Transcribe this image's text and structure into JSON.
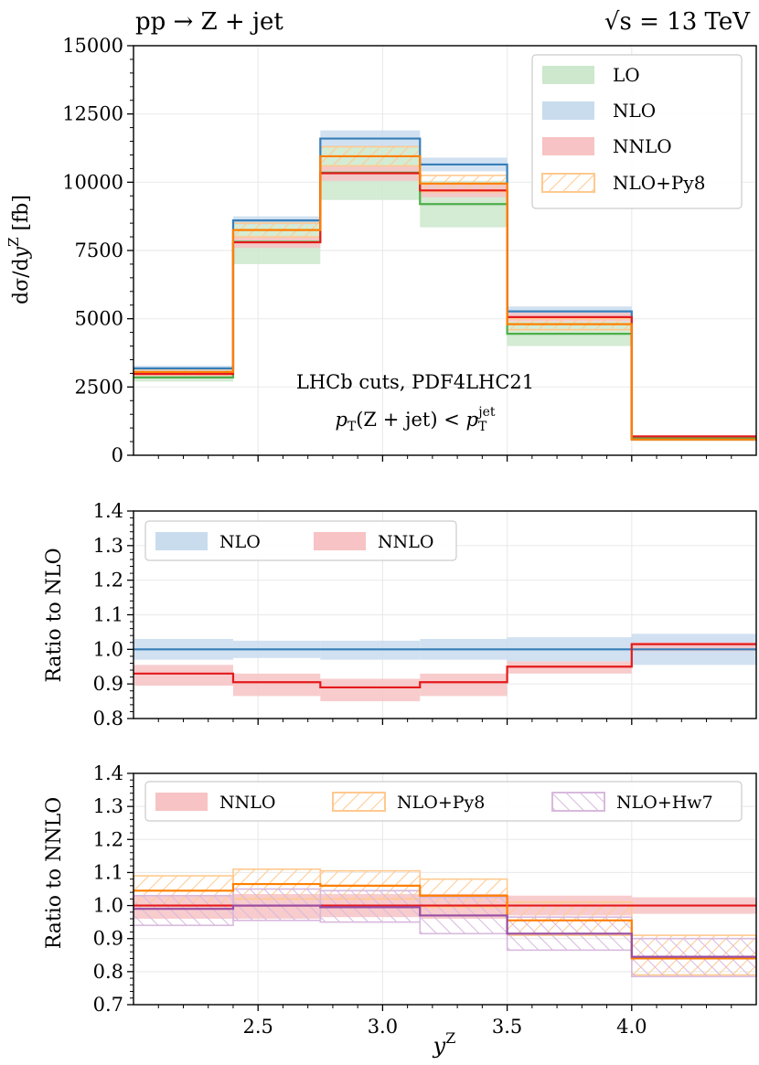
{
  "header": {
    "process": "pp → Z + jet",
    "energy_prefix": "√s",
    "energy_suffix": " = 13 TeV"
  },
  "colors": {
    "LO": "#4daf4a",
    "LO_band": "#cde8cc",
    "NLO": "#377eb8",
    "NLO_band": "#c9dcee",
    "NNLO": "#e41a1c",
    "NNLO_band": "#f7c3c4",
    "Py8": "#ff7f00",
    "Py8_hatch": "#ffc98f",
    "Hw7": "#984ea3",
    "Hw7_hatch": "#d8b9dd",
    "grid": "#ebebeb"
  },
  "chart_data": [
    {
      "id": "main",
      "type": "histogram",
      "ylabel": "dσ/dy^Z [fb]",
      "ylim": [
        0,
        15000
      ],
      "yticks": [
        0,
        2500,
        5000,
        7500,
        10000,
        12500,
        15000
      ],
      "yminor_step": 500,
      "xlim": [
        2.0,
        4.5
      ],
      "bin_edges": [
        2.0,
        2.4,
        2.75,
        3.15,
        3.5,
        4.0,
        4.5
      ],
      "annotation": [
        "LHCb cuts, PDF4LHC21",
        "pT(Z + jet) < pT^jet"
      ],
      "legend": {
        "location": "top-right",
        "entries": [
          "LO",
          "NLO",
          "NNLO",
          "NLO+Py8"
        ]
      },
      "series": [
        {
          "name": "LO",
          "kind": "band",
          "values": [
            2850,
            7820,
            10350,
            9200,
            4450,
            620
          ],
          "lower": [
            2700,
            7000,
            9350,
            8350,
            4000,
            560
          ],
          "upper": [
            3000,
            8650,
            11350,
            10050,
            4900,
            680
          ]
        },
        {
          "name": "NLO",
          "kind": "band",
          "values": [
            3180,
            8600,
            11600,
            10650,
            5270,
            580
          ],
          "lower": [
            3080,
            8450,
            11300,
            10400,
            5100,
            555
          ],
          "upper": [
            3280,
            8750,
            11900,
            10900,
            5450,
            605
          ]
        },
        {
          "name": "NNLO",
          "kind": "band",
          "values": [
            2980,
            7800,
            10330,
            9700,
            5060,
            690
          ],
          "lower": [
            2900,
            7600,
            10050,
            9450,
            4900,
            670
          ],
          "upper": [
            3060,
            8000,
            10600,
            9950,
            5220,
            710
          ]
        },
        {
          "name": "NLO+Py8",
          "kind": "hatch",
          "values": [
            3050,
            8250,
            10950,
            9950,
            4800,
            580
          ],
          "lower": [
            2950,
            8000,
            10600,
            9650,
            4600,
            550
          ],
          "upper": [
            3150,
            8500,
            11300,
            10250,
            5000,
            610
          ]
        }
      ]
    },
    {
      "id": "ratio_nlo",
      "type": "histogram",
      "ylabel": "Ratio to NLO",
      "ylim": [
        0.8,
        1.4
      ],
      "yticks": [
        0.8,
        0.9,
        1.0,
        1.1,
        1.2,
        1.3,
        1.4
      ],
      "ytick_labels": [
        "0.8",
        "0.9",
        "1.0",
        "1.1",
        "1.2",
        "1.3",
        "1.4"
      ],
      "yminor_step": 0.02,
      "xlim": [
        2.0,
        4.5
      ],
      "bin_edges": [
        2.0,
        2.4,
        2.75,
        3.15,
        3.5,
        4.0,
        4.5
      ],
      "legend": {
        "location": "top-left",
        "entries": [
          "NLO",
          "NNLO"
        ]
      },
      "series": [
        {
          "name": "NLO",
          "kind": "band",
          "values": [
            1.0,
            1.0,
            1.0,
            1.0,
            1.0,
            1.0
          ],
          "lower": [
            0.97,
            0.975,
            0.97,
            0.97,
            0.965,
            0.955
          ],
          "upper": [
            1.03,
            1.025,
            1.025,
            1.03,
            1.035,
            1.045
          ]
        },
        {
          "name": "NNLO",
          "kind": "band",
          "values": [
            0.93,
            0.905,
            0.89,
            0.905,
            0.95,
            1.015
          ],
          "lower": [
            0.895,
            0.865,
            0.85,
            0.865,
            0.93,
            0.995
          ],
          "upper": [
            0.955,
            0.93,
            0.915,
            0.93,
            0.965,
            1.02
          ]
        }
      ]
    },
    {
      "id": "ratio_nnlo",
      "type": "histogram",
      "ylabel": "Ratio to NNLO",
      "xlabel": "y^Z",
      "ylim": [
        0.7,
        1.4
      ],
      "yticks": [
        0.7,
        0.8,
        0.9,
        1.0,
        1.1,
        1.2,
        1.3,
        1.4
      ],
      "ytick_labels": [
        "0.7",
        "0.8",
        "0.9",
        "1.0",
        "1.1",
        "1.2",
        "1.3",
        "1.4"
      ],
      "yminor_step": 0.02,
      "xlim": [
        2.0,
        4.5
      ],
      "xticks": [
        2.5,
        3.0,
        3.5,
        4.0
      ],
      "xtick_labels": [
        "2.5",
        "3.0",
        "3.5",
        "4.0"
      ],
      "xminor_step": 0.1,
      "bin_edges": [
        2.0,
        2.4,
        2.75,
        3.15,
        3.5,
        4.0,
        4.5
      ],
      "legend": {
        "location": "top",
        "entries": [
          "NNLO",
          "NLO+Py8",
          "NLO+Hw7"
        ]
      },
      "series": [
        {
          "name": "NNLO",
          "kind": "band",
          "values": [
            1.0,
            1.0,
            1.0,
            1.0,
            1.0,
            1.0
          ],
          "lower": [
            0.96,
            0.96,
            0.965,
            0.96,
            0.97,
            0.975
          ],
          "upper": [
            1.03,
            1.035,
            1.035,
            1.035,
            1.03,
            1.025
          ]
        },
        {
          "name": "NLO+Py8",
          "kind": "hatch",
          "values": [
            1.045,
            1.065,
            1.06,
            1.03,
            0.955,
            0.84
          ],
          "lower": [
            1.0,
            1.02,
            1.02,
            0.995,
            0.91,
            0.79
          ],
          "upper": [
            1.09,
            1.11,
            1.105,
            1.08,
            1.01,
            0.91
          ]
        },
        {
          "name": "NLO+Hw7",
          "kind": "hatch",
          "values": [
            0.99,
            1.0,
            0.995,
            0.97,
            0.915,
            0.845
          ],
          "lower": [
            0.94,
            0.955,
            0.95,
            0.915,
            0.865,
            0.785
          ],
          "upper": [
            1.03,
            1.05,
            1.045,
            1.025,
            0.965,
            0.9
          ]
        }
      ]
    }
  ]
}
